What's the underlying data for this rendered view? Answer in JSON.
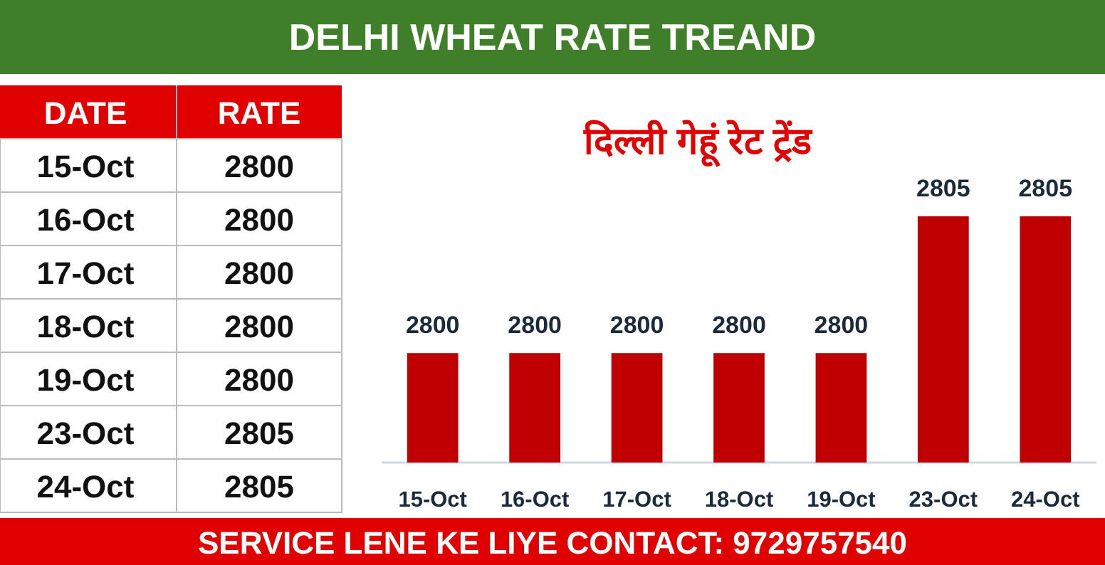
{
  "chart_data": [
    {
      "type": "other",
      "title": "DELHI WHEAT RATE TREAND",
      "categories": [
        "15-Oct",
        "16-Oct",
        "17-Oct",
        "18-Oct",
        "19-Oct",
        "23-Oct",
        "24-Oct"
      ],
      "values": [
        2800,
        2800,
        2800,
        2800,
        2800,
        2805,
        2805
      ],
      "data_labels": true,
      "annotations": [
        "DATE",
        "RATE",
        "SERVICE LENE KE LIYE CONTACT: 9729757540"
      ]
    },
    {
      "type": "bar",
      "title": "दिल्ली गेहूं रेट ट्रेंड",
      "categories": [
        "15-Oct",
        "16-Oct",
        "17-Oct",
        "18-Oct",
        "19-Oct",
        "23-Oct",
        "24-Oct"
      ],
      "values": [
        2800,
        2800,
        2800,
        2800,
        2800,
        2805,
        2805
      ],
      "color": "#c00000",
      "ylim": [
        2796,
        2805
      ],
      "data_labels": true
    }
  ]
}
